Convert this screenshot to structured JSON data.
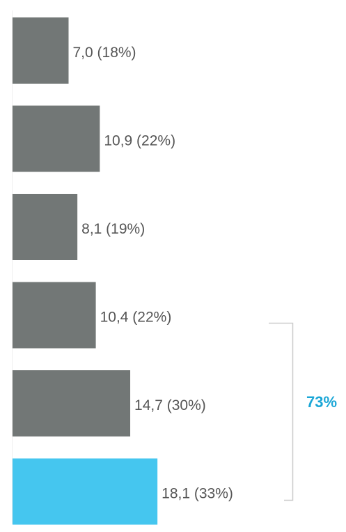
{
  "chart_data": {
    "type": "bar",
    "orientation": "horizontal",
    "values": [
      7.0,
      10.9,
      8.1,
      10.4,
      14.7,
      18.1
    ],
    "value_labels": [
      "7,0 (18%)",
      "10,9 (22%)",
      "8,1 (19%)",
      "10,4 (22%)",
      "14,7 (30%)",
      "18,1 (33%)"
    ],
    "colors": [
      "#727776",
      "#727776",
      "#727776",
      "#727776",
      "#727776",
      "#45c6ef"
    ],
    "xlim": [
      0,
      40
    ],
    "annotation": {
      "text": "73%",
      "color": "#1aa6d6"
    }
  }
}
